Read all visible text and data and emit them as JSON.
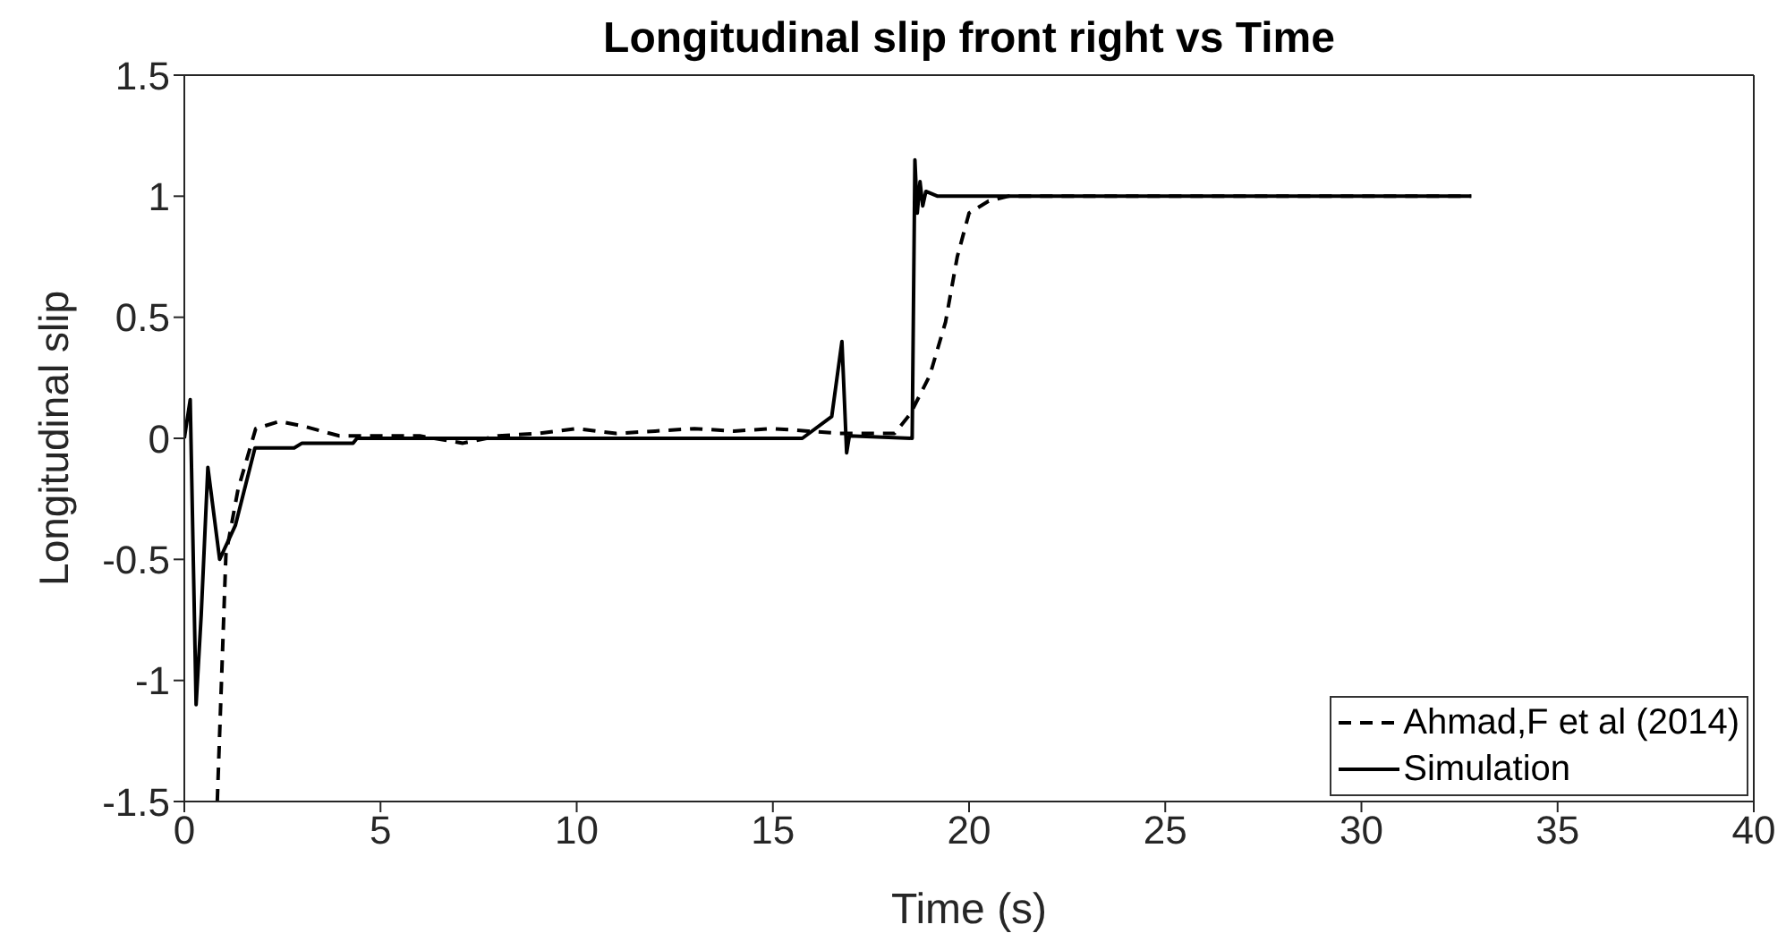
{
  "chart_data": {
    "type": "line",
    "title": "Longitudinal slip front right vs Time",
    "xlabel": "Time (s)",
    "ylabel": "Longitudinal slip",
    "xlim": [
      0,
      40
    ],
    "xticks": [
      0,
      5,
      10,
      15,
      20,
      25,
      30,
      35,
      40
    ],
    "ylim": [
      -1.5,
      1.5
    ],
    "yticks": [
      -1.5,
      -1,
      -0.5,
      0,
      0.5,
      1,
      1.5
    ],
    "grid": false,
    "legend": "bottom right",
    "marker": "none",
    "series": [
      {
        "name": "Ahmad,F et al (2014)",
        "color": "#000000",
        "line_style": "dashed",
        "x": [
          0.84,
          1.06,
          1.37,
          1.82,
          2.43,
          3.04,
          3.95,
          5,
          6,
          7.1,
          8,
          9,
          10,
          11,
          12,
          13,
          14,
          15,
          15.9,
          16.7,
          17.5,
          18.1,
          18.5,
          19.0,
          19.4,
          19.7,
          20.0,
          20.5,
          21,
          25,
          32.8
        ],
        "values": [
          -1.5,
          -0.48,
          -0.21,
          0.04,
          0.07,
          0.05,
          0.01,
          0.01,
          0.01,
          -0.02,
          0.01,
          0.02,
          0.04,
          0.02,
          0.03,
          0.04,
          0.03,
          0.04,
          0.03,
          0.02,
          0.02,
          0.02,
          0.1,
          0.26,
          0.48,
          0.75,
          0.93,
          0.98,
          1.0,
          1.0,
          1.0
        ]
      },
      {
        "name": "Simulation",
        "color": "#000000",
        "line_style": "solid",
        "x": [
          0,
          0.15,
          0.3,
          0.43,
          0.6,
          0.9,
          1.3,
          1.8,
          2.8,
          3.0,
          4.3,
          4.4,
          10,
          15.75,
          16.5,
          16.76,
          16.88,
          16.95,
          18.55,
          18.62,
          18.68,
          18.75,
          18.82,
          18.9,
          19.2,
          25,
          32.8
        ],
        "values": [
          0,
          0.16,
          -1.1,
          -0.73,
          -0.12,
          -0.5,
          -0.36,
          -0.04,
          -0.04,
          -0.02,
          -0.02,
          0,
          0,
          0,
          0.09,
          0.4,
          -0.06,
          0.01,
          0,
          1.15,
          0.93,
          1.06,
          0.96,
          1.02,
          1.0,
          1.0,
          1.0
        ]
      }
    ]
  }
}
